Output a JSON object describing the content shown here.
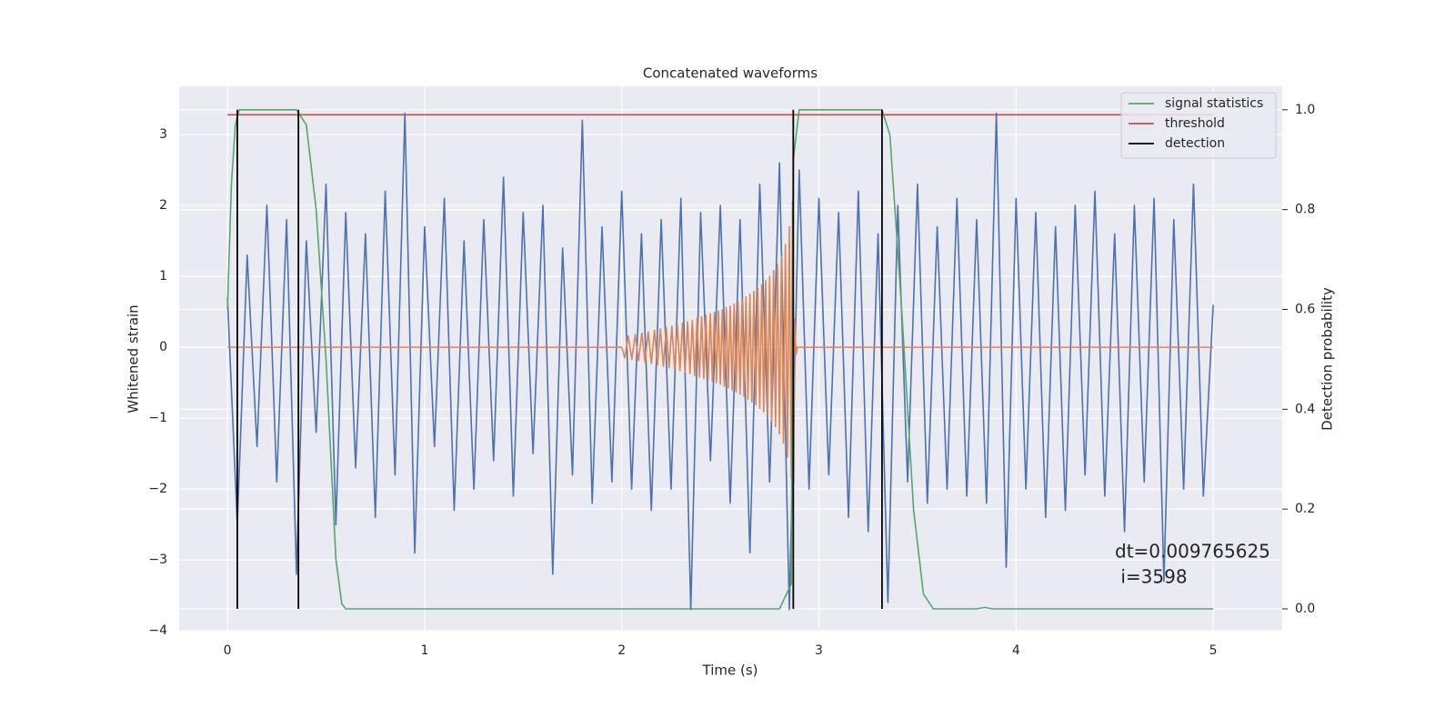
{
  "chart_data": {
    "type": "line",
    "title": "Concatenated waveforms",
    "xlabel": "Time (s)",
    "ylabel": "Whitened strain",
    "y2label": "Detection probability",
    "xlim": [
      -0.245,
      5.35
    ],
    "ylim": [
      -4.01,
      3.68
    ],
    "y2lim": [
      -0.0455,
      1.047
    ],
    "xticks": [
      0,
      1,
      2,
      3,
      4,
      5
    ],
    "yticks": [
      {
        "value": -4,
        "label": "−4"
      },
      {
        "value": -3,
        "label": "−3"
      },
      {
        "value": -2,
        "label": "−2"
      },
      {
        "value": -1,
        "label": "−1"
      },
      0,
      1,
      2,
      3
    ],
    "y2ticks": [
      {
        "value": 0,
        "label": "0.0"
      },
      {
        "value": 0.2,
        "label": "0.2"
      },
      {
        "value": 0.4,
        "label": "0.4"
      },
      {
        "value": 0.6,
        "label": "0.6"
      },
      {
        "value": 0.8,
        "label": "0.8"
      },
      {
        "value": 1,
        "label": "1.0"
      }
    ],
    "grid": true,
    "legend": "upper right",
    "annotation": [
      "dt=0.009765625",
      " i=3598"
    ],
    "series": [
      {
        "color": "#4c72b0",
        "x": [
          0,
          0.05,
          0.1,
          0.15,
          0.2,
          0.25,
          0.3,
          0.35,
          0.4,
          0.45,
          0.5,
          0.55,
          0.6,
          0.65,
          0.7,
          0.75,
          0.8,
          0.85,
          0.9,
          0.95,
          1,
          1.05,
          1.1,
          1.15,
          1.2,
          1.25,
          1.3,
          1.35,
          1.4,
          1.45,
          1.5,
          1.55,
          1.6,
          1.65,
          1.7,
          1.75,
          1.8,
          1.85,
          1.9,
          1.95,
          2,
          2.05,
          2.1,
          2.15,
          2.2,
          2.25,
          2.3,
          2.35,
          2.4,
          2.45,
          2.5,
          2.55,
          2.6,
          2.65,
          2.7,
          2.75,
          2.8,
          2.85,
          2.9,
          2.95,
          3,
          3.05,
          3.1,
          3.15,
          3.2,
          3.25,
          3.3,
          3.35,
          3.4,
          3.45,
          3.5,
          3.55,
          3.6,
          3.65,
          3.7,
          3.75,
          3.8,
          3.85,
          3.9,
          3.95,
          4,
          4.05,
          4.1,
          4.15,
          4.2,
          4.25,
          4.3,
          4.35,
          4.4,
          4.45,
          4.5,
          4.55,
          4.6,
          4.65,
          4.7,
          4.75,
          4.8,
          4.85,
          4.9,
          4.95,
          5
        ],
        "values": [
          0.7,
          -2.5,
          1.3,
          -1.4,
          2.0,
          -1.9,
          1.8,
          -3.2,
          1.5,
          -1.2,
          2.3,
          -2.5,
          1.9,
          -1.7,
          1.6,
          -2.4,
          2.2,
          -1.8,
          3.3,
          -2.9,
          1.7,
          -1.4,
          2.1,
          -2.3,
          1.5,
          -2.0,
          1.8,
          -1.6,
          2.4,
          -2.1,
          1.9,
          -1.5,
          2.0,
          -3.2,
          1.4,
          -1.8,
          3.2,
          -2.2,
          1.7,
          -1.9,
          2.2,
          -2.0,
          1.6,
          -2.3,
          1.8,
          -2.0,
          2.1,
          -3.7,
          1.9,
          -1.6,
          2.0,
          -2.2,
          1.8,
          -2.9,
          2.3,
          -1.9,
          2.6,
          -3.7,
          2.5,
          -2.0,
          2.1,
          -1.8,
          1.9,
          -2.4,
          2.2,
          -2.6,
          1.6,
          -3.6,
          2.0,
          -1.9,
          2.3,
          -2.2,
          1.7,
          -2.0,
          2.1,
          -2.1,
          1.8,
          -2.2,
          3.3,
          -3.1,
          2.1,
          -2.0,
          1.9,
          -2.4,
          1.7,
          -2.3,
          2.0,
          -1.8,
          2.2,
          -2.1,
          1.6,
          -2.6,
          2.0,
          -1.9,
          2.1,
          -3.3,
          1.8,
          -2.0,
          2.3,
          -2.1,
          0.6
        ]
      },
      {
        "color": "#dd8452",
        "x": [
          0,
          2.0,
          2.015,
          2.033,
          2.051,
          2.068,
          2.085,
          2.102,
          2.118,
          2.134,
          2.15,
          2.166,
          2.181,
          2.196,
          2.211,
          2.226,
          2.24,
          2.254,
          2.268,
          2.282,
          2.295,
          2.308,
          2.321,
          2.334,
          2.346,
          2.358,
          2.37,
          2.382,
          2.394,
          2.405,
          2.416,
          2.427,
          2.438,
          2.449,
          2.46,
          2.47,
          2.48,
          2.49,
          2.5,
          2.51,
          2.52,
          2.53,
          2.54,
          2.55,
          2.56,
          2.57,
          2.58,
          2.59,
          2.6,
          2.61,
          2.62,
          2.63,
          2.64,
          2.65,
          2.66,
          2.67,
          2.68,
          2.69,
          2.7,
          2.71,
          2.72,
          2.73,
          2.74,
          2.75,
          2.76,
          2.77,
          2.78,
          2.79,
          2.8,
          2.81,
          2.82,
          2.83,
          2.84,
          2.85,
          2.86,
          2.866,
          2.872,
          2.878,
          2.884,
          2.89,
          5
        ],
        "values": [
          0,
          0,
          -0.15,
          0.16,
          -0.17,
          0.18,
          -0.19,
          0.2,
          -0.21,
          0.22,
          -0.23,
          0.24,
          -0.25,
          0.26,
          -0.27,
          0.28,
          -0.29,
          0.3,
          -0.31,
          0.32,
          -0.33,
          0.34,
          -0.35,
          0.36,
          -0.37,
          0.38,
          -0.4,
          0.41,
          -0.42,
          0.43,
          -0.44,
          0.45,
          -0.46,
          0.47,
          -0.48,
          0.49,
          -0.5,
          0.51,
          -0.52,
          0.53,
          -0.55,
          0.56,
          -0.57,
          0.58,
          -0.6,
          0.61,
          -0.63,
          0.64,
          -0.66,
          0.67,
          -0.69,
          0.71,
          -0.73,
          0.75,
          -0.77,
          0.79,
          -0.81,
          0.83,
          -0.86,
          0.88,
          -0.91,
          0.94,
          -0.97,
          1.0,
          -1.04,
          1.08,
          -1.12,
          1.17,
          -1.22,
          1.28,
          -1.35,
          1.45,
          -1.55,
          1.7,
          -1.85,
          2.05,
          -1.9,
          0.4,
          -0.1,
          0,
          0
        ]
      },
      {
        "name": "signal statistics",
        "color": "#55a868",
        "axis": "y2",
        "x": [
          0,
          0.02,
          0.04,
          0.06,
          0.1,
          0.35,
          0.4,
          0.45,
          0.5,
          0.55,
          0.58,
          0.6,
          2.8,
          2.86,
          2.87,
          2.9,
          3.32,
          3.36,
          3.42,
          3.48,
          3.53,
          3.58,
          3.8,
          3.84,
          3.88,
          5
        ],
        "values": [
          0.6,
          0.85,
          0.97,
          1.0,
          1.0,
          1.0,
          0.97,
          0.8,
          0.5,
          0.1,
          0.01,
          0.0,
          0.0,
          0.05,
          0.9,
          1.0,
          1.0,
          0.95,
          0.6,
          0.2,
          0.03,
          0.0,
          0.0,
          0.003,
          0.0,
          0.0
        ]
      },
      {
        "name": "threshold",
        "color": "#c44e52",
        "axis": "y2",
        "x": [
          0,
          5
        ],
        "values": [
          0.99,
          0.99
        ]
      }
    ],
    "detections": {
      "name": "detection",
      "color": "#000000",
      "axis": "y2",
      "x": [
        0.05,
        0.36,
        2.87,
        3.32
      ],
      "ymin": 0,
      "ymax": 1
    }
  }
}
